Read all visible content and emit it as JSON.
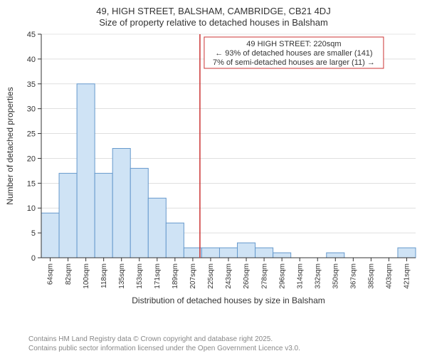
{
  "title": {
    "main": "49, HIGH STREET, BALSHAM, CAMBRIDGE, CB21 4DJ",
    "sub": "Size of property relative to detached houses in Balsham"
  },
  "chart": {
    "type": "histogram",
    "background_color": "#ffffff",
    "grid_color": "#cccccc",
    "axis_color": "#333333",
    "bar_fill": "#cfe3f5",
    "bar_stroke": "#6699cc",
    "x_categories": [
      "64sqm",
      "82sqm",
      "100sqm",
      "118sqm",
      "135sqm",
      "153sqm",
      "171sqm",
      "189sqm",
      "207sqm",
      "225sqm",
      "243sqm",
      "260sqm",
      "278sqm",
      "296sqm",
      "314sqm",
      "332sqm",
      "350sqm",
      "367sqm",
      "385sqm",
      "403sqm",
      "421sqm"
    ],
    "values": [
      9,
      17,
      35,
      17,
      22,
      18,
      12,
      7,
      2,
      2,
      2,
      3,
      2,
      1,
      0,
      0,
      1,
      0,
      0,
      0,
      2
    ],
    "ylim": [
      0,
      45
    ],
    "ytick_step": 5,
    "ylabel": "Number of detached properties",
    "xlabel": "Distribution of detached houses by size in Balsham",
    "title_fontsize": 13,
    "label_fontsize": 12,
    "tick_fontsize": 11,
    "bar_width": 1.0,
    "reference": {
      "index_after": 8,
      "color": "#cc3333",
      "annotation": {
        "line1": "49 HIGH STREET: 220sqm",
        "line2": "← 93% of detached houses are smaller (141)",
        "line3": "7% of semi-detached houses are larger (11) →",
        "box_stroke": "#cc3333",
        "box_fill": "#ffffff"
      }
    }
  },
  "footer": {
    "line1": "Contains HM Land Registry data © Crown copyright and database right 2025.",
    "line2": "Contains public sector information licensed under the Open Government Licence v3.0."
  }
}
